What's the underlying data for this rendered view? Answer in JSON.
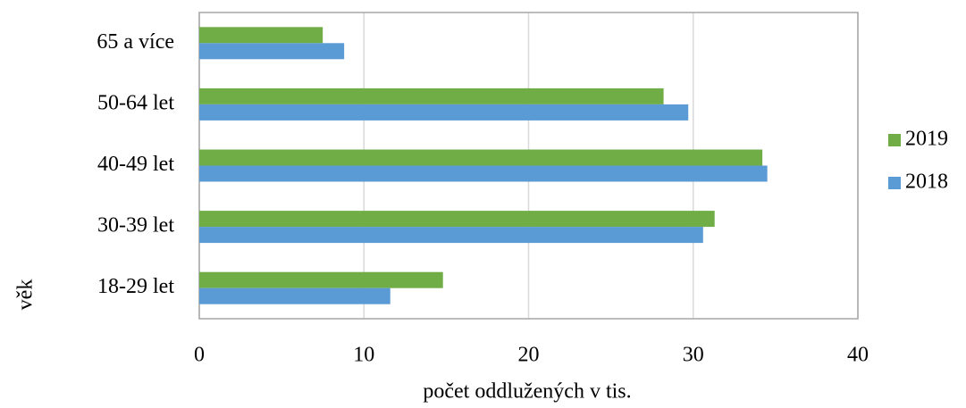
{
  "chart_data": {
    "type": "hbar",
    "categories": [
      "65 a více",
      "50-64 let",
      "40-49 let",
      "30-39 let",
      "18-29 let"
    ],
    "series": [
      {
        "name": "2019",
        "color": "#70ad47",
        "values": [
          7.5,
          28.2,
          34.2,
          31.3,
          14.8
        ]
      },
      {
        "name": "2018",
        "color": "#5b9bd5",
        "values": [
          8.8,
          29.7,
          34.5,
          30.6,
          11.6
        ]
      }
    ],
    "xlim": [
      0,
      40
    ],
    "xticks": [
      0,
      10,
      20,
      30,
      40
    ],
    "xlabel": "počet oddlužených v tis.",
    "ylabel": "věk",
    "grid": true,
    "legend": "right"
  }
}
